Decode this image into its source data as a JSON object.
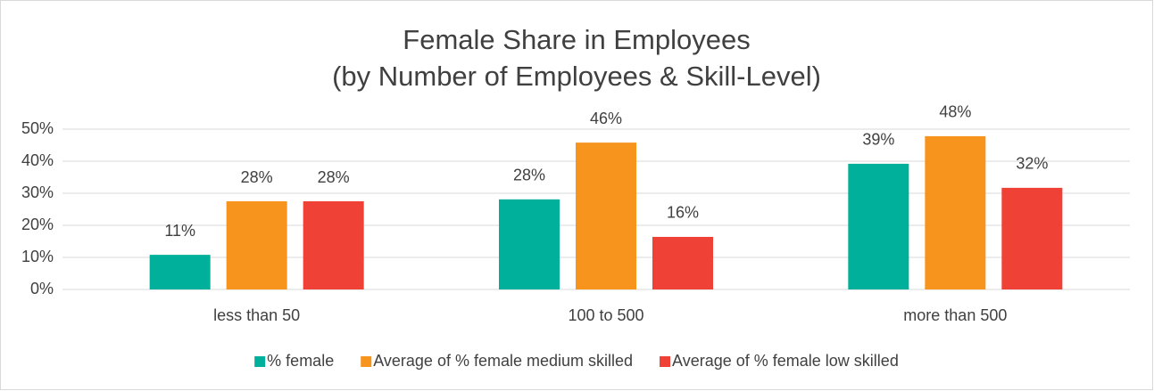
{
  "chart_data": {
    "type": "bar",
    "title": "Female Share in Employees",
    "subtitle": "(by Number of Employees & Skill-Level)",
    "categories": [
      "less than 50",
      "100 to 500",
      "more than 500"
    ],
    "series": [
      {
        "name": "% female",
        "color": "#00b09b",
        "values": [
          10.8,
          28.1,
          39.2
        ],
        "value_labels": [
          "11%",
          "28%",
          "39%"
        ]
      },
      {
        "name": "Average of % female medium skilled",
        "color": "#f7941d",
        "values": [
          27.5,
          45.8,
          47.8
        ],
        "value_labels": [
          "28%",
          "46%",
          "48%"
        ]
      },
      {
        "name": "Average of % female low skilled",
        "color": "#ef4136",
        "values": [
          27.5,
          16.4,
          31.7
        ],
        "value_labels": [
          "28%",
          "16%",
          "32%"
        ]
      }
    ],
    "ylim": [
      0,
      50
    ],
    "yticks": [
      {
        "value": 0,
        "label": "0%"
      },
      {
        "value": 10,
        "label": "10%"
      },
      {
        "value": 20,
        "label": "20%"
      },
      {
        "value": 30,
        "label": "30%"
      },
      {
        "value": 40,
        "label": "40%"
      },
      {
        "value": 50,
        "label": "50%"
      }
    ],
    "grid": true,
    "legend": "bottom"
  }
}
